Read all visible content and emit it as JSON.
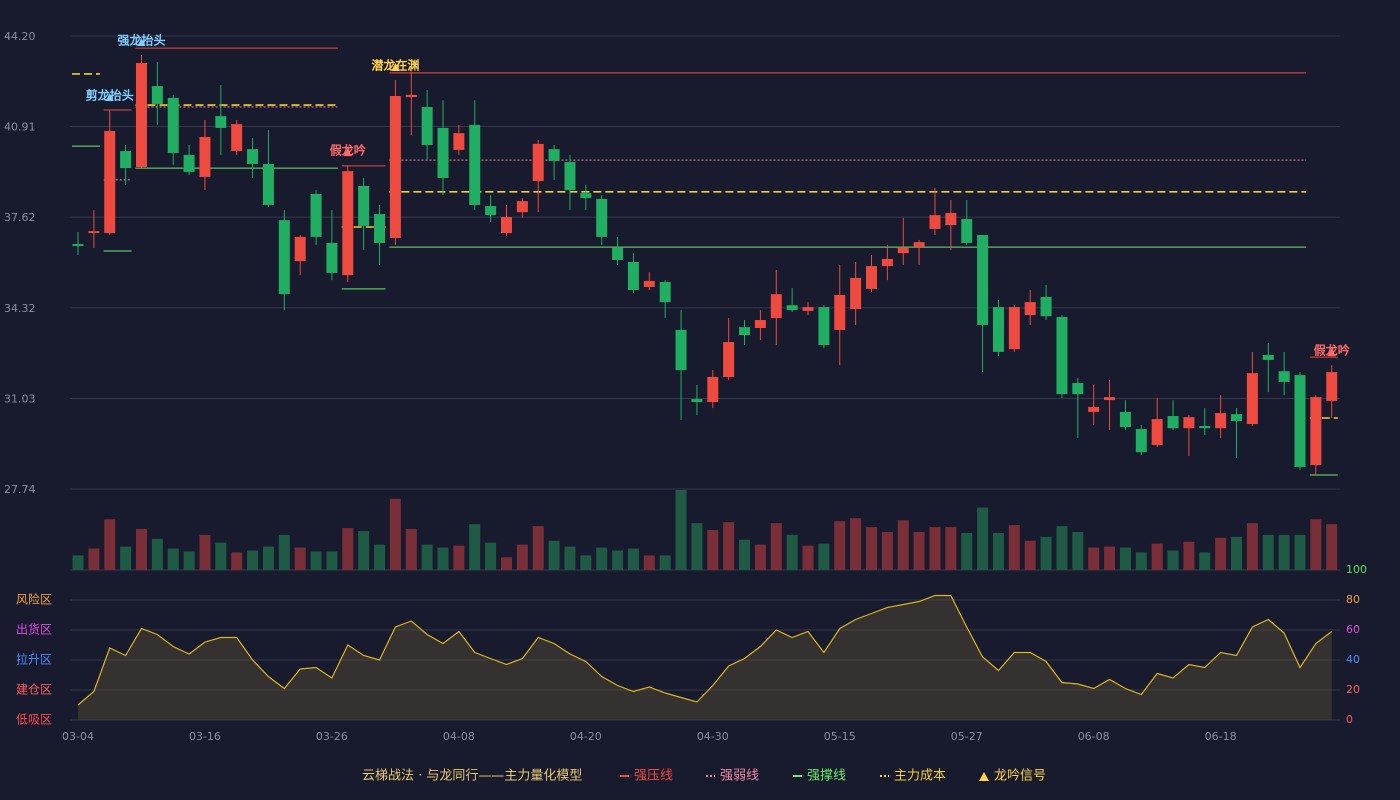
{
  "chart_data": {
    "type": "candlestick",
    "categories": [
      "03-04",
      null,
      null,
      null,
      null,
      null,
      null,
      null,
      "03-16",
      null,
      null,
      null,
      null,
      null,
      null,
      null,
      "03-26",
      null,
      null,
      null,
      null,
      null,
      null,
      null,
      "04-08",
      null,
      null,
      null,
      null,
      null,
      null,
      null,
      "04-20",
      null,
      null,
      null,
      null,
      null,
      null,
      null,
      "04-30",
      null,
      null,
      null,
      null,
      null,
      null,
      null,
      "05-15",
      null,
      null,
      null,
      null,
      null,
      null,
      null,
      "05-27",
      null,
      null,
      null,
      null,
      null,
      null,
      null,
      "06-08",
      null,
      null,
      null,
      null,
      null,
      null,
      null,
      "06-18",
      null,
      null,
      null,
      null,
      null,
      null,
      null
    ],
    "open": [
      36.64,
      37.04,
      37.04,
      40.02,
      39.44,
      42.38,
      41.95,
      39.88,
      39.08,
      41.29,
      40.02,
      40.09,
      39.55,
      37.51,
      36.02,
      38.46,
      36.68,
      35.51,
      38.75,
      37.73,
      36.86,
      41.98,
      41.62,
      40.86,
      40.06,
      40.97,
      38.02,
      37.04,
      37.8,
      38.93,
      40.09,
      39.62,
      38.49,
      38.28,
      36.5,
      35.99,
      35.08,
      35.26,
      33.52,
      31.01,
      30.9,
      31.81,
      33.62,
      33.59,
      33.95,
      34.42,
      34.21,
      34.35,
      33.52,
      34.28,
      35.01,
      35.84,
      36.31,
      36.53,
      37.19,
      37.33,
      37.55,
      36.97,
      34.35,
      32.82,
      34.06,
      34.72,
      33.99,
      31.59,
      30.54,
      30.97,
      30.54,
      29.92,
      29.34,
      30.39,
      29.95,
      30.03,
      29.95,
      30.46,
      30.1,
      32.61,
      32.02,
      31.88,
      28.61,
      30.94
    ],
    "high": [
      37.08,
      37.88,
      41.51,
      40.24,
      43.51,
      43.26,
      42.06,
      40.24,
      41.15,
      42.42,
      41.15,
      40.49,
      40.78,
      37.88,
      36.97,
      38.6,
      37.88,
      39.51,
      39.04,
      38.06,
      42.6,
      42.96,
      42.24,
      41.87,
      40.97,
      41.87,
      38.42,
      38.06,
      38.31,
      40.42,
      40.24,
      39.88,
      38.79,
      38.42,
      36.9,
      36.31,
      35.62,
      35.33,
      34.24,
      31.52,
      32.06,
      33.95,
      33.88,
      34.24,
      35.7,
      35.04,
      34.53,
      34.42,
      35.88,
      35.99,
      36.24,
      36.61,
      37.59,
      36.79,
      38.68,
      38.24,
      38.24,
      36.97,
      34.61,
      34.42,
      34.97,
      35.15,
      34.06,
      31.77,
      31.52,
      31.7,
      30.97,
      30.06,
      31.05,
      30.97,
      30.43,
      30.68,
      31.15,
      30.68,
      32.72,
      33.04,
      32.72,
      31.99,
      31.15,
      32.24
    ],
    "low": [
      36.24,
      36.5,
      36.97,
      38.79,
      39.4,
      40.97,
      39.51,
      39.15,
      38.6,
      39.88,
      39.88,
      39.04,
      37.99,
      34.24,
      35.51,
      36.61,
      35.33,
      35.26,
      36.42,
      35.88,
      36.61,
      40.6,
      39.69,
      38.42,
      39.88,
      37.88,
      37.44,
      36.93,
      37.59,
      37.8,
      38.97,
      37.88,
      37.88,
      36.61,
      35.88,
      34.86,
      34.97,
      33.95,
      30.25,
      30.43,
      30.68,
      31.7,
      32.97,
      33.15,
      32.97,
      34.17,
      34.06,
      32.86,
      32.24,
      33.7,
      34.9,
      35.33,
      35.88,
      35.88,
      36.97,
      36.42,
      36.61,
      31.99,
      32.57,
      32.72,
      33.7,
      33.88,
      31.05,
      29.59,
      30.06,
      29.88,
      29.88,
      28.97,
      29.27,
      29.88,
      28.94,
      29.7,
      29.59,
      28.86,
      30.03,
      31.26,
      31.15,
      28.43,
      28.25,
      30.32
    ],
    "close": [
      36.57,
      37.11,
      40.75,
      39.4,
      43.22,
      41.73,
      39.95,
      39.26,
      40.53,
      40.86,
      41.0,
      39.55,
      38.06,
      34.82,
      36.9,
      36.9,
      35.59,
      39.29,
      37.3,
      36.68,
      42.02,
      42.06,
      40.24,
      39.04,
      40.67,
      38.06,
      37.69,
      37.62,
      38.2,
      40.28,
      39.66,
      38.6,
      38.31,
      36.9,
      36.06,
      34.97,
      35.3,
      34.53,
      32.06,
      30.9,
      31.81,
      33.08,
      33.33,
      33.88,
      34.82,
      34.24,
      34.35,
      32.97,
      34.79,
      35.41,
      35.84,
      36.1,
      36.5,
      36.71,
      37.69,
      37.77,
      36.68,
      33.7,
      32.72,
      34.35,
      34.53,
      34.02,
      31.19,
      31.19,
      30.72,
      31.08,
      29.99,
      29.08,
      30.28,
      29.95,
      30.35,
      29.95,
      30.5,
      30.21,
      31.95,
      32.43,
      31.63,
      28.54,
      31.08,
      31.99
    ],
    "ylim": [
      27.74,
      44.2
    ],
    "yticks": [
      {
        "value": 44.2,
        "label": "44.20"
      },
      40.91,
      37.62,
      34.32,
      31.03,
      27.74
    ],
    "grid": true,
    "colors": {
      "up": "#ee4a40",
      "down": "#1fae62",
      "volume_up": "#7a2f38",
      "volume_down": "#1f5a45"
    },
    "volume": [
      15,
      22,
      52,
      24,
      42,
      32,
      22,
      19,
      36,
      28,
      18,
      20,
      24,
      36,
      23,
      19,
      19,
      43,
      40,
      26,
      73,
      42,
      26,
      23,
      25,
      47,
      28,
      13,
      26,
      45,
      30,
      24,
      15,
      23,
      20,
      22,
      15,
      15,
      82,
      48,
      41,
      49,
      31,
      26,
      48,
      36,
      25,
      27,
      50,
      53,
      44,
      39,
      51,
      39,
      44,
      44,
      38,
      64,
      38,
      46,
      30,
      34,
      45,
      39,
      23,
      24,
      23,
      18,
      27,
      20,
      29,
      18,
      33,
      34,
      48,
      36,
      36,
      36,
      52,
      47
    ],
    "lines": [
      {
        "name": "强压线",
        "color": "#ee4a40",
        "style": "solid",
        "segments": [
          {
            "value": 41.51,
            "from": 2,
            "to": 3
          },
          {
            "value": 43.76,
            "from": 4,
            "to": 16
          },
          {
            "value": 39.48,
            "from": 17,
            "to": 19
          },
          {
            "value": 42.86,
            "from": 20,
            "to": 77
          },
          {
            "value": 32.53,
            "from": 78,
            "to": 79
          }
        ]
      },
      {
        "name": "强弱线",
        "color": "#f08aa8",
        "style": "dotted",
        "segments": [
          {
            "value": 38.97,
            "from": 2,
            "to": 3
          },
          {
            "value": 41.62,
            "from": 4,
            "to": 16
          },
          {
            "value": 39.69,
            "from": 20,
            "to": 77
          }
        ]
      },
      {
        "name": "强撑线",
        "color": "#6ee86e",
        "style": "solid",
        "segments": [
          {
            "value": 40.2,
            "from": 0,
            "to": 1
          },
          {
            "value": 36.39,
            "from": 2,
            "to": 3
          },
          {
            "value": 39.4,
            "from": 4,
            "to": 16
          },
          {
            "value": 35.01,
            "from": 17,
            "to": 19
          },
          {
            "value": 36.53,
            "from": 20,
            "to": 77
          },
          {
            "value": 28.25,
            "from": 78,
            "to": 79
          }
        ]
      },
      {
        "name": "主力成本",
        "color": "#f2d03a",
        "style": "dashed",
        "segments": [
          {
            "value": 42.82,
            "from": 0,
            "to": 1
          },
          {
            "value": 41.69,
            "from": 4,
            "to": 16
          },
          {
            "value": 37.26,
            "from": 17,
            "to": 19
          },
          {
            "value": 38.54,
            "from": 20,
            "to": 77
          },
          {
            "value": 30.32,
            "from": 78,
            "to": 79
          }
        ]
      }
    ],
    "signals": [
      {
        "index": 2,
        "label": "剪龙抬头",
        "color": "#7fcfff"
      },
      {
        "index": 4,
        "label": "强龙抬头",
        "color": "#7fcfff"
      },
      {
        "index": 17,
        "label": "假龙吟",
        "color": "#ff6b6b"
      },
      {
        "index": 20,
        "label": "潜龙在渊",
        "color": "#ffd24a"
      },
      {
        "index": 79,
        "label": "假龙吟",
        "color": "#ff6b6b"
      }
    ],
    "signal_legend": {
      "name": "龙吟信号",
      "color": "#ffd24a"
    },
    "indicator": {
      "values": [
        10,
        19,
        48,
        43,
        61,
        57,
        49,
        44,
        52,
        55,
        55,
        40,
        29,
        21,
        34,
        35,
        28,
        50,
        43,
        40,
        62,
        66,
        57,
        51,
        59,
        45,
        41,
        37,
        41,
        55,
        51,
        44,
        39,
        29,
        23,
        19,
        22,
        18,
        15,
        12,
        23,
        36,
        41,
        49,
        60,
        55,
        59,
        45,
        61,
        67,
        71,
        75,
        77,
        79,
        83,
        83,
        62,
        42,
        33,
        45,
        45,
        39,
        25,
        24,
        21,
        27,
        21,
        17,
        31,
        28,
        37,
        35,
        45,
        43,
        62,
        67,
        58,
        35,
        51,
        59
      ],
      "color": "#d9b520",
      "ylim": [
        0,
        100
      ],
      "yticks": [
        0,
        20,
        40,
        60,
        80,
        100
      ],
      "tick_colors": [
        "#ff4a4a",
        "#ff5a5a",
        "#4a8cff",
        "#e04ae0",
        "#f0a040",
        "#5ae05a"
      ],
      "zones": [
        {
          "label": "风险区",
          "value": 80,
          "color": "#f0a040"
        },
        {
          "label": "出货区",
          "value": 60,
          "color": "#e04ae0"
        },
        {
          "label": "拉升区",
          "value": 40,
          "color": "#4a8cff"
        },
        {
          "label": "建仓区",
          "value": 20,
          "color": "#ff5a5a"
        },
        {
          "label": "低吸区",
          "value": 0,
          "color": "#ff4a4a"
        }
      ]
    },
    "legend_title": "云梯战法 · 与龙同行——主力量化模型"
  }
}
